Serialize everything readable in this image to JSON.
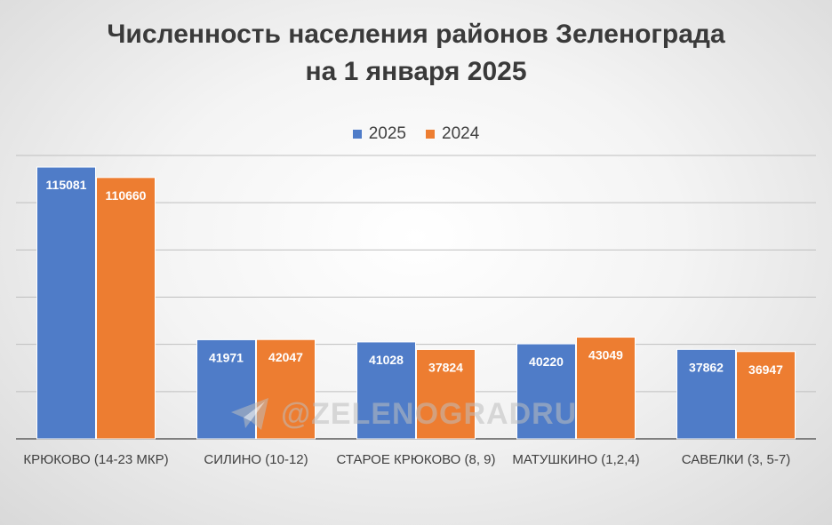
{
  "watermark": {
    "text": "@ZELENOGRADRU",
    "icon": "telegram-icon"
  },
  "chart_data": {
    "type": "bar",
    "title": [
      "Численность населения районов Зеленограда",
      "на 1 января 2025"
    ],
    "categories": [
      "КРЮКОВО (14-23 МКР)",
      "СИЛИНО (10-12)",
      "СТАРОЕ КРЮКОВО (8, 9)",
      "МАТУШКИНО (1,2,4)",
      "САВЕЛКИ (3, 5-7)"
    ],
    "series": [
      {
        "name": "2025",
        "color": "#4f7cc8",
        "values": [
          115081,
          41971,
          41028,
          40220,
          37862
        ]
      },
      {
        "name": "2024",
        "color": "#ed7d31",
        "values": [
          110660,
          42047,
          37824,
          43049,
          36947
        ]
      }
    ],
    "ylim": [
      0,
      120000
    ],
    "y_ticks_labeled": false,
    "grid": true,
    "legend": "top",
    "data_labels": "inside-top"
  }
}
